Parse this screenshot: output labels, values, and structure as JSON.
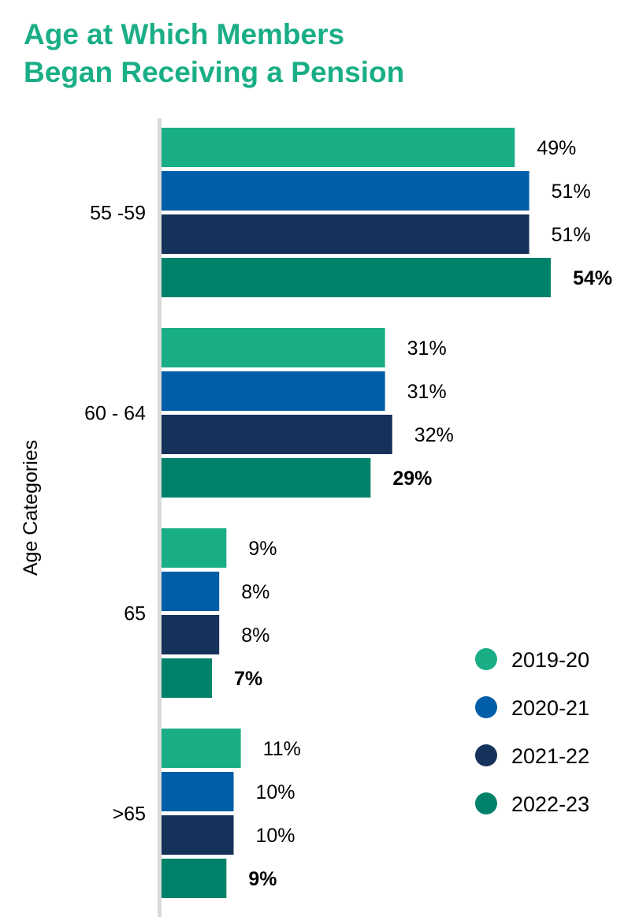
{
  "chart_data": {
    "type": "bar",
    "orientation": "horizontal",
    "title_lines": [
      "Age at Which Members",
      "Began Receiving a Pension"
    ],
    "ylabel": "Age Categories",
    "xlabel": "",
    "categories": [
      "55 -59",
      "60 - 64",
      "65",
      ">65"
    ],
    "series": [
      {
        "name": "2019-20",
        "color": "#1aae86",
        "values": [
          49,
          31,
          9,
          11
        ],
        "labels": [
          "49%",
          "31%",
          "9%",
          "11%"
        ],
        "bold": false
      },
      {
        "name": "2020-21",
        "color": "#005ea8",
        "values": [
          51,
          31,
          8,
          10
        ],
        "labels": [
          "51%",
          "31%",
          "8%",
          "10%"
        ],
        "bold": false
      },
      {
        "name": "2021-22",
        "color": "#15325a",
        "values": [
          51,
          32,
          8,
          10
        ],
        "labels": [
          "51%",
          "32%",
          "8%",
          "10%"
        ],
        "bold": false
      },
      {
        "name": "2022-23",
        "color": "#00826a",
        "values": [
          54,
          29,
          7,
          9
        ],
        "labels": [
          "54%",
          "29%",
          "7%",
          "9%"
        ],
        "bold": true
      }
    ],
    "xlim": [
      0,
      54
    ],
    "grid": false,
    "legend_position": "bottom-right",
    "axis_line_color": "#d9d9d9"
  }
}
